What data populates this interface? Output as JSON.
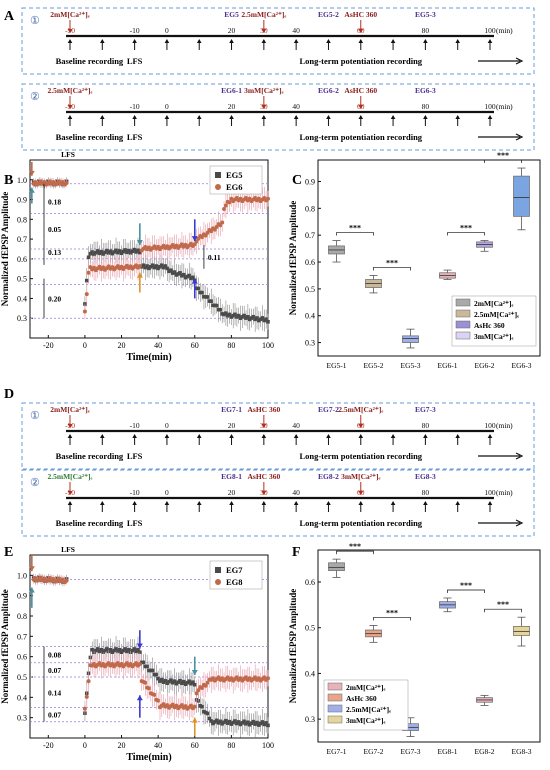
{
  "panels": {
    "A": {
      "letter": "A",
      "protocols": [
        {
          "num": "①",
          "annotations": [
            {
              "t": -30,
              "label": "2mM[Ca²⁺]ₑ",
              "color": "#8b1a1a"
            },
            {
              "t": 20,
              "label": "EG5",
              "color": "#4b2f8f"
            },
            {
              "t": 30,
              "label": "2.5mM[Ca²⁺]ₑ",
              "color": "#8b1a1a"
            },
            {
              "t": 50,
              "label": "EG5-2",
              "color": "#4b2f8f"
            },
            {
              "t": 60,
              "label": "AsHC 360",
              "color": "#8b1a1a"
            },
            {
              "t": 80,
              "label": "EG5-3",
              "color": "#4b2f8f"
            }
          ],
          "arrow_times": [
            -30,
            -20,
            -10,
            0,
            10,
            20,
            30,
            40,
            50,
            60,
            70,
            80,
            90,
            100
          ],
          "red_times": [
            -30,
            30,
            60
          ],
          "ticks": [
            "-30",
            "-10",
            "0",
            "20",
            "30",
            "40",
            "60",
            "80",
            "100"
          ],
          "unit": "(min)",
          "phase_labels": [
            "Baseline recording",
            "LFS",
            "Long-term potentiation recording"
          ]
        },
        {
          "num": "②",
          "annotations": [
            {
              "t": -30,
              "label": "2.5mM[Ca²⁺]ₑ",
              "color": "#8b1a1a"
            },
            {
              "t": 20,
              "label": "EG6-1",
              "color": "#4b2f8f"
            },
            {
              "t": 30,
              "label": "3mM[Ca²⁺]ₑ",
              "color": "#8b1a1a"
            },
            {
              "t": 50,
              "label": "EG6-2",
              "color": "#4b2f8f"
            },
            {
              "t": 60,
              "label": "AsHC 360",
              "color": "#8b1a1a"
            },
            {
              "t": 80,
              "label": "EG6-3",
              "color": "#4b2f8f"
            }
          ],
          "arrow_times": [
            -30,
            -20,
            -10,
            0,
            10,
            20,
            30,
            40,
            50,
            60,
            70,
            80,
            90,
            100
          ],
          "red_times": [
            -30,
            30,
            60
          ],
          "ticks": [
            "-30",
            "-10",
            "0",
            "20",
            "30",
            "40",
            "60",
            "80",
            "100"
          ],
          "unit": "(min)",
          "phase_labels": [
            "Baseline recording",
            "LFS",
            "Long-term potentiation recording"
          ]
        }
      ]
    },
    "D": {
      "letter": "D",
      "protocols": [
        {
          "num": "①",
          "annotations": [
            {
              "t": -30,
              "label": "2mM[Ca²⁺]ₑ",
              "color": "#8b1a1a"
            },
            {
              "t": 20,
              "label": "EG7-1",
              "color": "#4b2f8f"
            },
            {
              "t": 30,
              "label": "AsHC 360",
              "color": "#8b1a1a"
            },
            {
              "t": 50,
              "label": "EG7-2",
              "color": "#4b2f8f"
            },
            {
              "t": 60,
              "label": "2.5mM[Ca²⁺]ₑ",
              "color": "#8b1a1a"
            },
            {
              "t": 80,
              "label": "EG7-3",
              "color": "#4b2f8f"
            }
          ],
          "arrow_times": [
            -30,
            -20,
            -10,
            0,
            10,
            20,
            30,
            40,
            50,
            60,
            70,
            80,
            90,
            100
          ],
          "red_times": [
            -30,
            30,
            60
          ],
          "ticks": [
            "-30",
            "-10",
            "0",
            "20",
            "30",
            "40",
            "60",
            "80",
            "100"
          ],
          "unit": "(min)",
          "phase_labels": [
            "Baseline recording",
            "LFS",
            "Long-term potentiation recording"
          ]
        },
        {
          "num": "②",
          "annotations": [
            {
              "t": -30,
              "label": "2.5mM[Ca²⁺]ₑ",
              "color": "#2e7d32"
            },
            {
              "t": 20,
              "label": "EG8-1",
              "color": "#4b2f8f"
            },
            {
              "t": 30,
              "label": "AsHC 360",
              "color": "#8b1a1a"
            },
            {
              "t": 50,
              "label": "EG8-2",
              "color": "#4b2f8f"
            },
            {
              "t": 60,
              "label": "3mM[Ca²⁺]ₑ",
              "color": "#8b1a1a"
            },
            {
              "t": 80,
              "label": "EG8-3",
              "color": "#4b2f8f"
            }
          ],
          "arrow_times": [
            -30,
            -20,
            -10,
            0,
            10,
            20,
            30,
            40,
            50,
            60,
            70,
            80,
            90,
            100
          ],
          "red_times": [
            -30,
            30,
            60
          ],
          "ticks": [
            "-30",
            "-10",
            "0",
            "20",
            "30",
            "40",
            "60",
            "80",
            "100"
          ],
          "unit": "(min)",
          "phase_labels": [
            "Baseline recording",
            "LFS",
            "Long-term potentiation recording"
          ]
        }
      ]
    },
    "B": {
      "letter": "B",
      "lfs": "LFS",
      "deltas": [
        "0.18",
        "0.05",
        "0.13",
        "0.20",
        "0.11"
      ]
    },
    "E": {
      "letter": "E",
      "lfs": "LFS",
      "deltas": [
        "0.08",
        "0.07",
        "0.14",
        "0.07"
      ]
    },
    "C": {
      "letter": "C",
      "sig": "***"
    },
    "F": {
      "letter": "F",
      "sig": "***"
    }
  },
  "chart_data": [
    {
      "id": "B",
      "type": "scatter",
      "xlabel": "Time(min)",
      "ylabel": "Normalized fEPSP Amplitude",
      "xlim": [
        -30,
        100
      ],
      "ylim": [
        0.2,
        1.1
      ],
      "xticks": [
        -20,
        0,
        20,
        40,
        60,
        80,
        100
      ],
      "yticks": [
        0.3,
        0.4,
        0.5,
        0.6,
        0.7,
        0.8,
        0.9,
        1.0
      ],
      "legend_position": "top-right",
      "series": [
        {
          "name": "EG5",
          "marker": "square",
          "color": "#4a4a4a",
          "segments": [
            {
              "t0": -30,
              "t1": -10,
              "v0": 1.0,
              "v1": 1.0
            },
            {
              "t0": 0,
              "t1": 2,
              "v0": 0.38,
              "v1": 0.6
            },
            {
              "t0": 2,
              "t1": 30,
              "v0": 0.63,
              "v1": 0.64
            },
            {
              "t0": 30,
              "t1": 45,
              "v0": 0.56,
              "v1": 0.56
            },
            {
              "t0": 45,
              "t1": 60,
              "v0": 0.54,
              "v1": 0.5
            },
            {
              "t0": 60,
              "t1": 75,
              "v0": 0.46,
              "v1": 0.33
            },
            {
              "t0": 75,
              "t1": 100,
              "v0": 0.32,
              "v1": 0.29
            }
          ]
        },
        {
          "name": "EG6",
          "marker": "circle",
          "color": "#c06a4a",
          "segments": [
            {
              "t0": -30,
              "t1": -10,
              "v0": 1.0,
              "v1": 1.0
            },
            {
              "t0": 0,
              "t1": 2,
              "v0": 0.33,
              "v1": 0.53
            },
            {
              "t0": 2,
              "t1": 30,
              "v0": 0.55,
              "v1": 0.56
            },
            {
              "t0": 30,
              "t1": 60,
              "v0": 0.65,
              "v1": 0.67
            },
            {
              "t0": 60,
              "t1": 75,
              "v0": 0.69,
              "v1": 0.78
            },
            {
              "t0": 75,
              "t1": 80,
              "v0": 0.85,
              "v1": 0.9
            },
            {
              "t0": 80,
              "t1": 100,
              "v0": 0.9,
              "v1": 0.9
            }
          ]
        }
      ]
    },
    {
      "id": "C",
      "type": "box",
      "ylabel": "Normalized fEPSP Amplitude",
      "ylim": [
        0.25,
        0.98
      ],
      "yticks": [
        0.3,
        0.4,
        0.5,
        0.6,
        0.7,
        0.8,
        0.9
      ],
      "categories": [
        "EG5-1",
        "EG5-2",
        "EG5-3",
        "EG6-1",
        "EG6-2",
        "EG6-3"
      ],
      "boxes": [
        {
          "q1": 0.63,
          "median": 0.645,
          "q3": 0.66,
          "min": 0.6,
          "max": 0.68,
          "color": "#a9a9a9"
        },
        {
          "q1": 0.505,
          "median": 0.52,
          "q3": 0.535,
          "min": 0.485,
          "max": 0.55,
          "color": "#c9b99a"
        },
        {
          "q1": 0.3,
          "median": 0.315,
          "q3": 0.325,
          "min": 0.28,
          "max": 0.35,
          "color": "#9fb0e8"
        },
        {
          "q1": 0.54,
          "median": 0.55,
          "q3": 0.56,
          "min": 0.535,
          "max": 0.57,
          "color": "#e8b3b8"
        },
        {
          "q1": 0.655,
          "median": 0.665,
          "q3": 0.675,
          "min": 0.64,
          "max": 0.68,
          "color": "#b4a4e0"
        },
        {
          "q1": 0.77,
          "median": 0.84,
          "q3": 0.92,
          "min": 0.72,
          "max": 0.95,
          "color": "#7aa5e0"
        }
      ],
      "comparisons": [
        [
          0,
          1
        ],
        [
          1,
          2
        ],
        [
          3,
          4
        ],
        [
          4,
          5
        ]
      ],
      "legend_position": "lower-right",
      "legend": [
        {
          "label": "2mM[Ca²⁺]ₑ",
          "color": "#a9a9a9"
        },
        {
          "label": "2.5mM[Ca²⁺]ₑ",
          "color": "#c9b99a"
        },
        {
          "label": "AsHc 360",
          "color": "#9b8fd6"
        },
        {
          "label": "3mM[Ca²⁺]ₑ",
          "color": "#ddd2f5"
        }
      ]
    },
    {
      "id": "E",
      "type": "scatter",
      "xlabel": "Time(min)",
      "ylabel": "Normalized fEPSP Amplitude",
      "xlim": [
        -30,
        100
      ],
      "ylim": [
        0.2,
        1.1
      ],
      "xticks": [
        -20,
        0,
        20,
        40,
        60,
        80,
        100
      ],
      "yticks": [
        0.3,
        0.4,
        0.5,
        0.6,
        0.7,
        0.8,
        0.9,
        1.0
      ],
      "legend_position": "top-right",
      "series": [
        {
          "name": "EG7",
          "marker": "square",
          "color": "#4a4a4a",
          "segments": [
            {
              "t0": -30,
              "t1": -10,
              "v0": 1.0,
              "v1": 0.99
            },
            {
              "t0": 0,
              "t1": 3,
              "v0": 0.33,
              "v1": 0.6
            },
            {
              "t0": 3,
              "t1": 30,
              "v0": 0.63,
              "v1": 0.63
            },
            {
              "t0": 30,
              "t1": 40,
              "v0": 0.58,
              "v1": 0.5
            },
            {
              "t0": 40,
              "t1": 60,
              "v0": 0.48,
              "v1": 0.47
            },
            {
              "t0": 60,
              "t1": 68,
              "v0": 0.4,
              "v1": 0.3
            },
            {
              "t0": 68,
              "t1": 100,
              "v0": 0.28,
              "v1": 0.27
            }
          ]
        },
        {
          "name": "EG8",
          "marker": "circle",
          "color": "#c06a4a",
          "segments": [
            {
              "t0": -30,
              "t1": -10,
              "v0": 1.0,
              "v1": 0.99
            },
            {
              "t0": 0,
              "t1": 3,
              "v0": 0.34,
              "v1": 0.55
            },
            {
              "t0": 3,
              "t1": 30,
              "v0": 0.56,
              "v1": 0.56
            },
            {
              "t0": 30,
              "t1": 40,
              "v0": 0.5,
              "v1": 0.38
            },
            {
              "t0": 40,
              "t1": 60,
              "v0": 0.36,
              "v1": 0.35
            },
            {
              "t0": 60,
              "t1": 68,
              "v0": 0.42,
              "v1": 0.48
            },
            {
              "t0": 68,
              "t1": 100,
              "v0": 0.49,
              "v1": 0.49
            }
          ]
        }
      ]
    },
    {
      "id": "F",
      "type": "box",
      "ylabel": "Normalized fEPSP Amplitude",
      "ylim": [
        0.25,
        0.67
      ],
      "yticks": [
        0.3,
        0.4,
        0.5,
        0.6
      ],
      "categories": [
        "EG7-1",
        "EG7-2",
        "EG7-3",
        "EG8-1",
        "EG8-2",
        "EG8-3"
      ],
      "boxes": [
        {
          "q1": 0.625,
          "median": 0.632,
          "q3": 0.642,
          "min": 0.61,
          "max": 0.65,
          "color": "#a9a9a9"
        },
        {
          "q1": 0.48,
          "median": 0.487,
          "q3": 0.495,
          "min": 0.468,
          "max": 0.505,
          "color": "#e8a58a"
        },
        {
          "q1": 0.275,
          "median": 0.282,
          "q3": 0.29,
          "min": 0.262,
          "max": 0.303,
          "color": "#9fb0e8"
        },
        {
          "q1": 0.543,
          "median": 0.55,
          "q3": 0.557,
          "min": 0.535,
          "max": 0.565,
          "color": "#9fb0e8"
        },
        {
          "q1": 0.337,
          "median": 0.342,
          "q3": 0.347,
          "min": 0.33,
          "max": 0.352,
          "color": "#e8b3b8"
        },
        {
          "q1": 0.483,
          "median": 0.492,
          "q3": 0.503,
          "min": 0.46,
          "max": 0.523,
          "color": "#e6d59a"
        }
      ],
      "comparisons": [
        [
          0,
          1
        ],
        [
          1,
          2
        ],
        [
          3,
          4
        ],
        [
          4,
          5
        ]
      ],
      "legend_position": "lower-left",
      "legend": [
        {
          "label": "2mM[Ca²⁺]ₑ",
          "color": "#e8b3b8"
        },
        {
          "label": "AsHc 360",
          "color": "#e8a58a"
        },
        {
          "label": "2.5mM[Ca²⁺]ₑ",
          "color": "#9fb0e8"
        },
        {
          "label": "3mM[Ca²⁺]ₑ",
          "color": "#e6d59a"
        }
      ]
    }
  ]
}
